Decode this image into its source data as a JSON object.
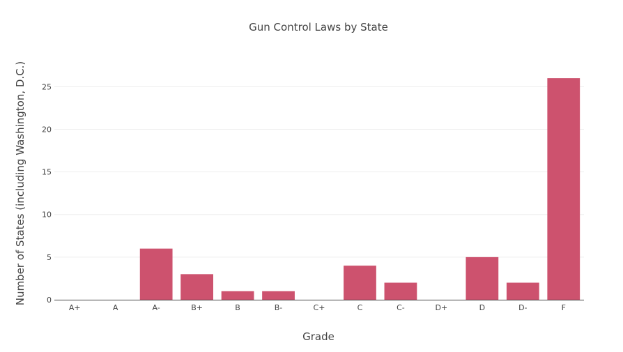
{
  "chart_data": {
    "type": "bar",
    "title": "Gun Control Laws by State",
    "xlabel": "Grade",
    "ylabel": "Number of States (including Washington, D.C.)",
    "categories": [
      "A+",
      "A",
      "A-",
      "B+",
      "B",
      "B-",
      "C+",
      "C",
      "C-",
      "D+",
      "D",
      "D-",
      "F"
    ],
    "values": [
      0,
      0,
      6,
      3,
      1,
      1,
      0,
      4,
      2,
      0,
      5,
      2,
      26
    ],
    "ylim": [
      0,
      27.4
    ],
    "yticks": [
      0,
      5,
      10,
      15,
      20,
      25
    ],
    "grid": true,
    "bar_color": "#CD526E"
  }
}
